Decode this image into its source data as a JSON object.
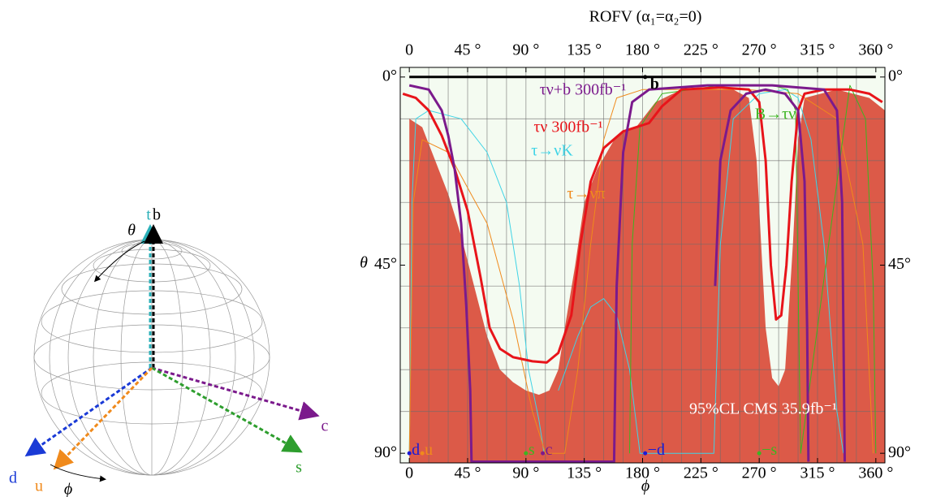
{
  "chart_data": {
    "type": "line",
    "title": "ROFV (α₁=α₂=0)",
    "x_label": "ϕ",
    "y_label": "θ",
    "xlim": [
      -7,
      367
    ],
    "ylim": [
      -2.3,
      92.3
    ],
    "y_inverted": true,
    "grid": true,
    "xticks": [
      0,
      {
        "value": 45,
        "label": "45 °"
      },
      {
        "value": 90,
        "label": "90 °"
      },
      {
        "value": 135,
        "label": "135 °"
      },
      {
        "value": 180,
        "label": "180 °"
      },
      {
        "value": 225,
        "label": "225 °"
      },
      {
        "value": 270,
        "label": "270 °"
      },
      {
        "value": 315,
        "label": "315 °"
      },
      {
        "value": 360,
        "label": "360 °"
      }
    ],
    "yticks": [
      {
        "value": 0,
        "label": "0°"
      },
      {
        "value": 45,
        "label": "45°"
      },
      {
        "value": 90,
        "label": "90°"
      }
    ],
    "xgrid": [
      15,
      30,
      45,
      60,
      75,
      90,
      105,
      120,
      135,
      150,
      165,
      180,
      195,
      210,
      225,
      240,
      255,
      270,
      285,
      300,
      315,
      330,
      345
    ],
    "ygrid": [
      10,
      20,
      30,
      40,
      50,
      60,
      70,
      80
    ],
    "series": [
      {
        "color": "#dc5a48",
        "fill": true,
        "x": [
          0,
          0,
          10,
          20,
          30,
          40,
          50,
          60,
          70,
          80,
          90,
          100,
          108,
          115,
          120,
          128,
          135,
          145,
          160,
          175,
          190,
          210,
          250,
          262,
          268,
          275,
          280,
          285,
          290,
          296,
          300,
          305,
          330,
          355,
          367,
          367
        ],
        "values": [
          92.3,
          10,
          12,
          20,
          28,
          38,
          50,
          62,
          70,
          73,
          75,
          76,
          75,
          70,
          60,
          45,
          30,
          22,
          14,
          12,
          6,
          3,
          3,
          5,
          20,
          60,
          72,
          74,
          70,
          40,
          15,
          5,
          3,
          5,
          8,
          92.3
        ]
      },
      {
        "color": "#000000",
        "width": 3,
        "x": [
          0,
          360
        ],
        "values": [
          0,
          0
        ]
      },
      {
        "name": "τ→νK",
        "color": "#3fd4e6",
        "width": 1,
        "x": [
          0,
          2,
          5,
          15,
          40,
          60,
          75,
          85,
          92,
          100,
          104,
          106,
          115,
          130,
          140,
          150,
          160,
          170,
          178,
          235,
          240,
          250,
          270,
          290,
          300,
          310,
          320,
          330,
          335
        ],
        "values": [
          90,
          30,
          10,
          8,
          10,
          18,
          30,
          50,
          70,
          82,
          90,
          null,
          75,
          62,
          55,
          53,
          57,
          70,
          90,
          90,
          40,
          10,
          4,
          3,
          5,
          15,
          40,
          80,
          90
        ]
      },
      {
        "name": "τ→νπ",
        "color": "#f08a1c",
        "width": 1,
        "x": [
          0,
          3,
          10,
          30,
          60,
          80,
          95,
          105,
          120,
          130,
          140,
          150,
          160,
          180,
          220,
          260,
          300,
          330,
          350,
          358
        ],
        "values": [
          90,
          30,
          15,
          18,
          35,
          58,
          80,
          90,
          90,
          70,
          40,
          15,
          5,
          3,
          3,
          3,
          4,
          10,
          40,
          90
        ]
      },
      {
        "name": "B→τν",
        "color": "#3cb521",
        "width": 1,
        "x": [
          170,
          172,
          178,
          195,
          240,
          280,
          292,
          298,
          302,
          340,
          352,
          358,
          360
        ],
        "values": [
          90,
          40,
          12,
          4,
          2,
          2,
          3,
          8,
          90,
          2,
          10,
          50,
          90
        ]
      },
      {
        "name": "τν 300fb⁻¹",
        "color": "#e8141a",
        "width": 3,
        "x": [
          -5,
          5,
          15,
          25,
          35,
          45,
          55,
          62,
          70,
          80,
          95,
          106,
          115,
          125,
          132,
          140,
          150,
          165,
          185,
          195,
          210,
          240,
          262,
          270,
          275,
          279,
          283,
          287,
          291,
          295,
          300,
          305,
          320,
          340,
          355,
          365
        ],
        "values": [
          4,
          5,
          8,
          14,
          22,
          32,
          48,
          60,
          65,
          67,
          68,
          68.3,
          66,
          57,
          40,
          25,
          17,
          13,
          11,
          7,
          3,
          2.5,
          3,
          6,
          20,
          45,
          58,
          57,
          45,
          25,
          8,
          4,
          3,
          3,
          4,
          6
        ]
      },
      {
        "name": "τν+b 300fb⁻¹",
        "color": "#7b1a8c",
        "width": 3,
        "x": [
          0,
          15,
          25,
          30,
          35,
          40,
          44,
          47,
          48,
          158,
          160,
          165,
          172,
          185,
          230,
          280,
          320,
          330,
          334,
          336,
          234,
          236,
          240,
          248,
          260,
          275,
          290,
          300,
          305,
          307,
          308
        ],
        "values": [
          2,
          3,
          8,
          14,
          22,
          35,
          55,
          75,
          92,
          92,
          50,
          18,
          6,
          3,
          2,
          2,
          3,
          8,
          30,
          92,
          null,
          50,
          20,
          8,
          4,
          3,
          4,
          8,
          25,
          60,
          92
        ]
      }
    ],
    "points": [
      {
        "label": "b",
        "x": 182,
        "y": 0,
        "color": "#000000"
      },
      {
        "label": "d",
        "x": 0,
        "y": 90,
        "color": "#1a1ad6"
      },
      {
        "label": "u",
        "x": 10,
        "y": 90,
        "color": "#f08a1c"
      },
      {
        "label": "s",
        "x": 90,
        "y": 90,
        "color": "#3cb521"
      },
      {
        "label": "c",
        "x": 103,
        "y": 90,
        "color": "#7b1a8c"
      },
      {
        "label": "−d",
        "x": 182,
        "y": 90,
        "color": "#1a1ad6"
      },
      {
        "label": "−s",
        "x": 270,
        "y": 90,
        "color": "#3cb521"
      }
    ],
    "annotation": "95%CL CMS 35.9fb⁻¹"
  },
  "diagram": {
    "labels": {
      "t": "t",
      "b": "b",
      "theta": "θ",
      "phi": "ϕ",
      "c": "c",
      "d": "d",
      "u": "u",
      "s": "s"
    }
  }
}
